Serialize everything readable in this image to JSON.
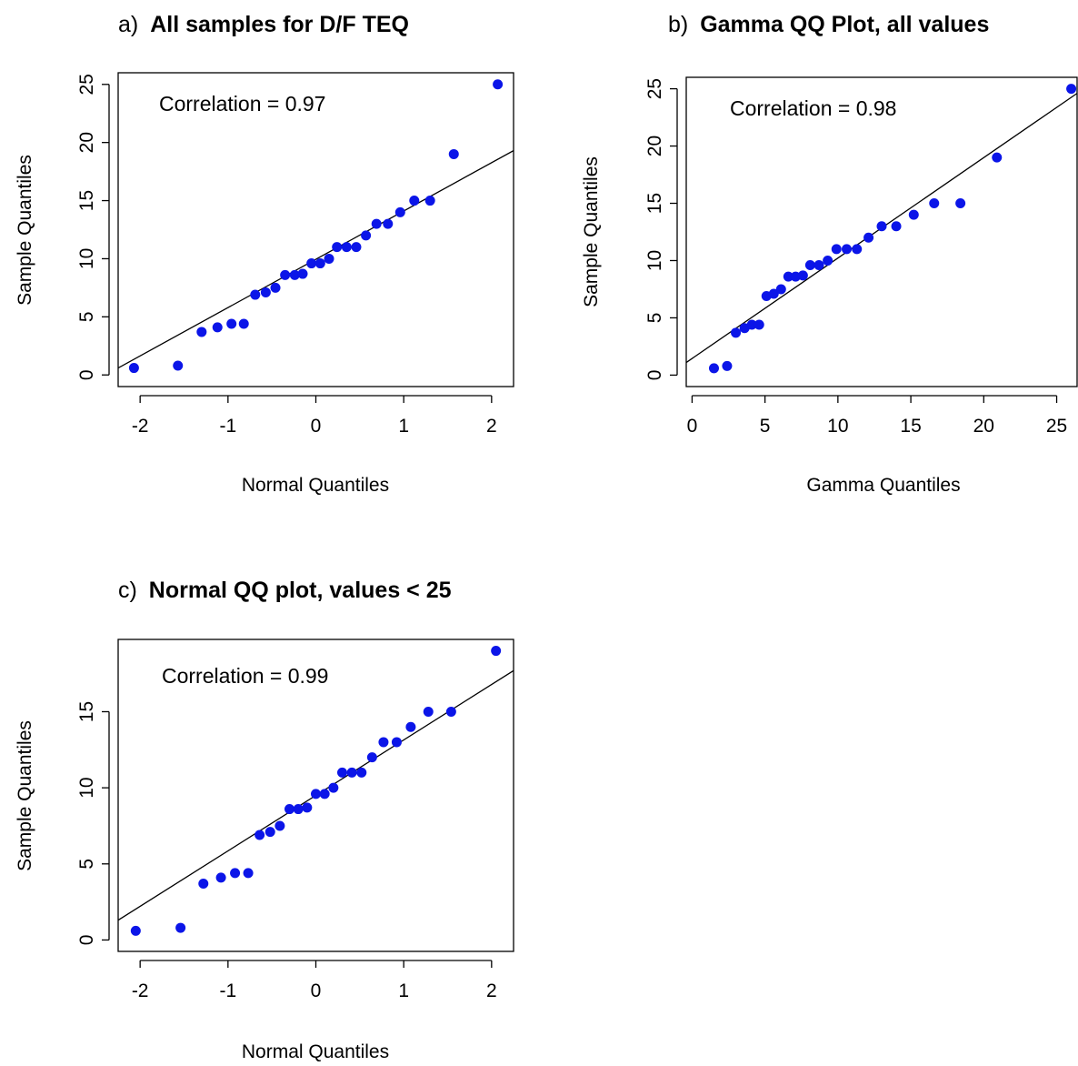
{
  "panels": [
    {
      "id": "a",
      "title_prefix": "a)",
      "title_bold": "All samples for D/F TEQ",
      "xlabel": "Normal Quantiles",
      "ylabel": "Sample Quantiles",
      "annotation": "Correlation = 0.97",
      "xlim": [
        -2.25,
        2.25
      ],
      "ylim": [
        -1.0,
        26.0
      ],
      "xticks": [
        -2,
        -1,
        0,
        1,
        2
      ],
      "yticks": [
        0,
        5,
        10,
        15,
        20,
        25
      ],
      "fit_line": {
        "x": [
          -2.25,
          2.25
        ],
        "y": [
          0.6,
          19.3
        ]
      },
      "points_x": [
        -2.07,
        -1.57,
        -1.3,
        -1.12,
        -0.96,
        -0.82,
        -0.69,
        -0.57,
        -0.46,
        -0.35,
        -0.24,
        -0.15,
        -0.05,
        0.05,
        0.15,
        0.24,
        0.35,
        0.46,
        0.57,
        0.69,
        0.82,
        0.96,
        1.12,
        1.3,
        1.57,
        2.07
      ],
      "points_y": [
        0.6,
        0.8,
        3.7,
        4.1,
        4.4,
        4.4,
        6.9,
        7.1,
        7.5,
        8.6,
        8.6,
        8.7,
        9.6,
        9.6,
        10.0,
        11.0,
        11.0,
        11.0,
        12.0,
        13.0,
        13.0,
        14.0,
        15.0,
        15.0,
        19.0,
        25.0
      ]
    },
    {
      "id": "b",
      "title_prefix": "b)",
      "title_bold": "Gamma QQ Plot, all values",
      "xlabel": "Gamma Quantiles",
      "ylabel": "Sample Quantiles",
      "annotation": "Correlation = 0.98",
      "xlim": [
        -0.4,
        26.4
      ],
      "ylim": [
        -1.0,
        26.0
      ],
      "xticks": [
        0,
        5,
        10,
        15,
        20,
        25
      ],
      "yticks": [
        0,
        5,
        10,
        15,
        20,
        25
      ],
      "fit_line": {
        "x": [
          -0.4,
          26.4
        ],
        "y": [
          1.1,
          24.6
        ]
      },
      "points_x": [
        1.5,
        2.4,
        3.0,
        3.6,
        4.1,
        4.6,
        5.1,
        5.6,
        6.1,
        6.6,
        7.1,
        7.6,
        8.1,
        8.7,
        9.3,
        9.9,
        10.6,
        11.3,
        12.1,
        13.0,
        14.0,
        15.2,
        16.6,
        18.4,
        20.9,
        26.0
      ],
      "points_y": [
        0.6,
        0.8,
        3.7,
        4.1,
        4.4,
        4.4,
        6.9,
        7.1,
        7.5,
        8.6,
        8.6,
        8.7,
        9.6,
        9.6,
        10.0,
        11.0,
        11.0,
        11.0,
        12.0,
        13.0,
        13.0,
        14.0,
        15.0,
        15.0,
        19.0,
        25.0
      ]
    },
    {
      "id": "c",
      "title_prefix": "c)",
      "title_bold": "Normal QQ plot, values < 25",
      "xlabel": "Normal Quantiles",
      "ylabel": "Sample Quantiles",
      "annotation": "Correlation = 0.99",
      "xlim": [
        -2.25,
        2.25
      ],
      "ylim": [
        -0.75,
        19.75
      ],
      "xticks": [
        -2,
        -1,
        0,
        1,
        2
      ],
      "yticks": [
        0,
        5,
        10,
        15
      ],
      "fit_line": {
        "x": [
          -2.25,
          2.25
        ],
        "y": [
          1.3,
          17.7
        ]
      },
      "points_x": [
        -2.05,
        -1.54,
        -1.28,
        -1.08,
        -0.92,
        -0.77,
        -0.64,
        -0.52,
        -0.41,
        -0.3,
        -0.2,
        -0.1,
        0.0,
        0.1,
        0.2,
        0.3,
        0.41,
        0.52,
        0.64,
        0.77,
        0.92,
        1.08,
        1.28,
        1.54,
        2.05
      ],
      "points_y": [
        0.6,
        0.8,
        3.7,
        4.1,
        4.4,
        4.4,
        6.9,
        7.1,
        7.5,
        8.6,
        8.6,
        8.7,
        9.6,
        9.6,
        10.0,
        11.0,
        11.0,
        11.0,
        12.0,
        13.0,
        13.0,
        14.0,
        15.0,
        15.0,
        19.0
      ]
    }
  ],
  "chart_data": [
    {
      "type": "scatter",
      "title": "a) All samples for D/F TEQ",
      "xlabel": "Normal Quantiles",
      "ylabel": "Sample Quantiles",
      "annotation": "Correlation = 0.97",
      "xlim": [
        -2.25,
        2.25
      ],
      "ylim": [
        -1.0,
        26.0
      ],
      "grid": false,
      "series": [
        {
          "values": "see panels[0].points_x / points_y"
        }
      ]
    },
    {
      "type": "scatter",
      "title": "b) Gamma QQ Plot, all values",
      "xlabel": "Gamma Quantiles",
      "ylabel": "Sample Quantiles",
      "annotation": "Correlation = 0.98",
      "xlim": [
        -0.4,
        26.4
      ],
      "ylim": [
        -1.0,
        26.0
      ],
      "grid": false
    },
    {
      "type": "scatter",
      "title": "c) Normal QQ plot, values < 25",
      "xlabel": "Normal Quantiles",
      "ylabel": "Sample Quantiles",
      "annotation": "Correlation = 0.99",
      "xlim": [
        -2.25,
        2.25
      ],
      "ylim": [
        -0.75,
        19.75
      ],
      "grid": false
    }
  ]
}
